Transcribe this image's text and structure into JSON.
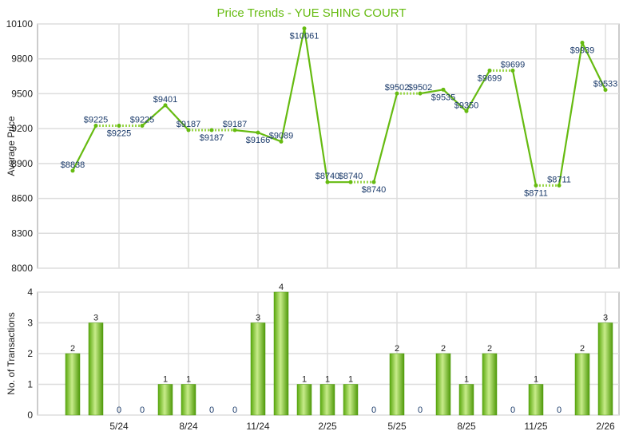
{
  "chart_data": [
    {
      "type": "line",
      "title": "Price Trends - YUE SHING COURT",
      "ylabel": "Average Price",
      "ylim": [
        8000,
        10100
      ],
      "yticks": [
        "8000",
        "8300",
        "8600",
        "8900",
        "9200",
        "9500",
        "9800",
        "10100"
      ],
      "x": [
        "3/24",
        "4/24",
        "5/24",
        "6/24",
        "7/24",
        "8/24",
        "9/24",
        "10/24",
        "11/24",
        "12/24",
        "1/25",
        "2/25",
        "3/25",
        "4/25",
        "5/25",
        "6/25",
        "7/25",
        "8/25",
        "9/25",
        "10/25",
        "11/25",
        "12/25",
        "1/26",
        "2/26"
      ],
      "xticks": [
        "5/24",
        "8/24",
        "11/24",
        "2/25",
        "5/25",
        "8/25",
        "11/25",
        "2/26"
      ],
      "values": [
        8838,
        9225,
        9225,
        9225,
        9401,
        9187,
        9187,
        9187,
        9166,
        9089,
        10061,
        8740,
        8740,
        8740,
        9502,
        9502,
        9535,
        9350,
        9699,
        9699,
        8711,
        8711,
        9939,
        9533
      ],
      "labels": [
        "$8838",
        "$9225",
        "$9225",
        "$9225",
        "$9401",
        "$9187",
        "$9187",
        "$9187",
        "$9166",
        "$9089",
        "$10061",
        "$8740",
        "$8740",
        "$8740",
        "$9502",
        "$9502",
        "$9535",
        "$9350",
        "$9699",
        "$9699",
        "$8711",
        "$8711",
        "$9939",
        "$9533"
      ],
      "color": "#66bb11"
    },
    {
      "type": "bar",
      "ylabel": "No. of Transactions",
      "ylim": [
        0,
        4
      ],
      "yticks": [
        "0",
        "1",
        "2",
        "3",
        "4"
      ],
      "values": [
        2,
        3,
        0,
        0,
        1,
        1,
        0,
        0,
        3,
        4,
        1,
        1,
        1,
        0,
        2,
        0,
        2,
        1,
        2,
        0,
        1,
        0,
        2,
        3
      ],
      "color": "#66bb11"
    }
  ]
}
